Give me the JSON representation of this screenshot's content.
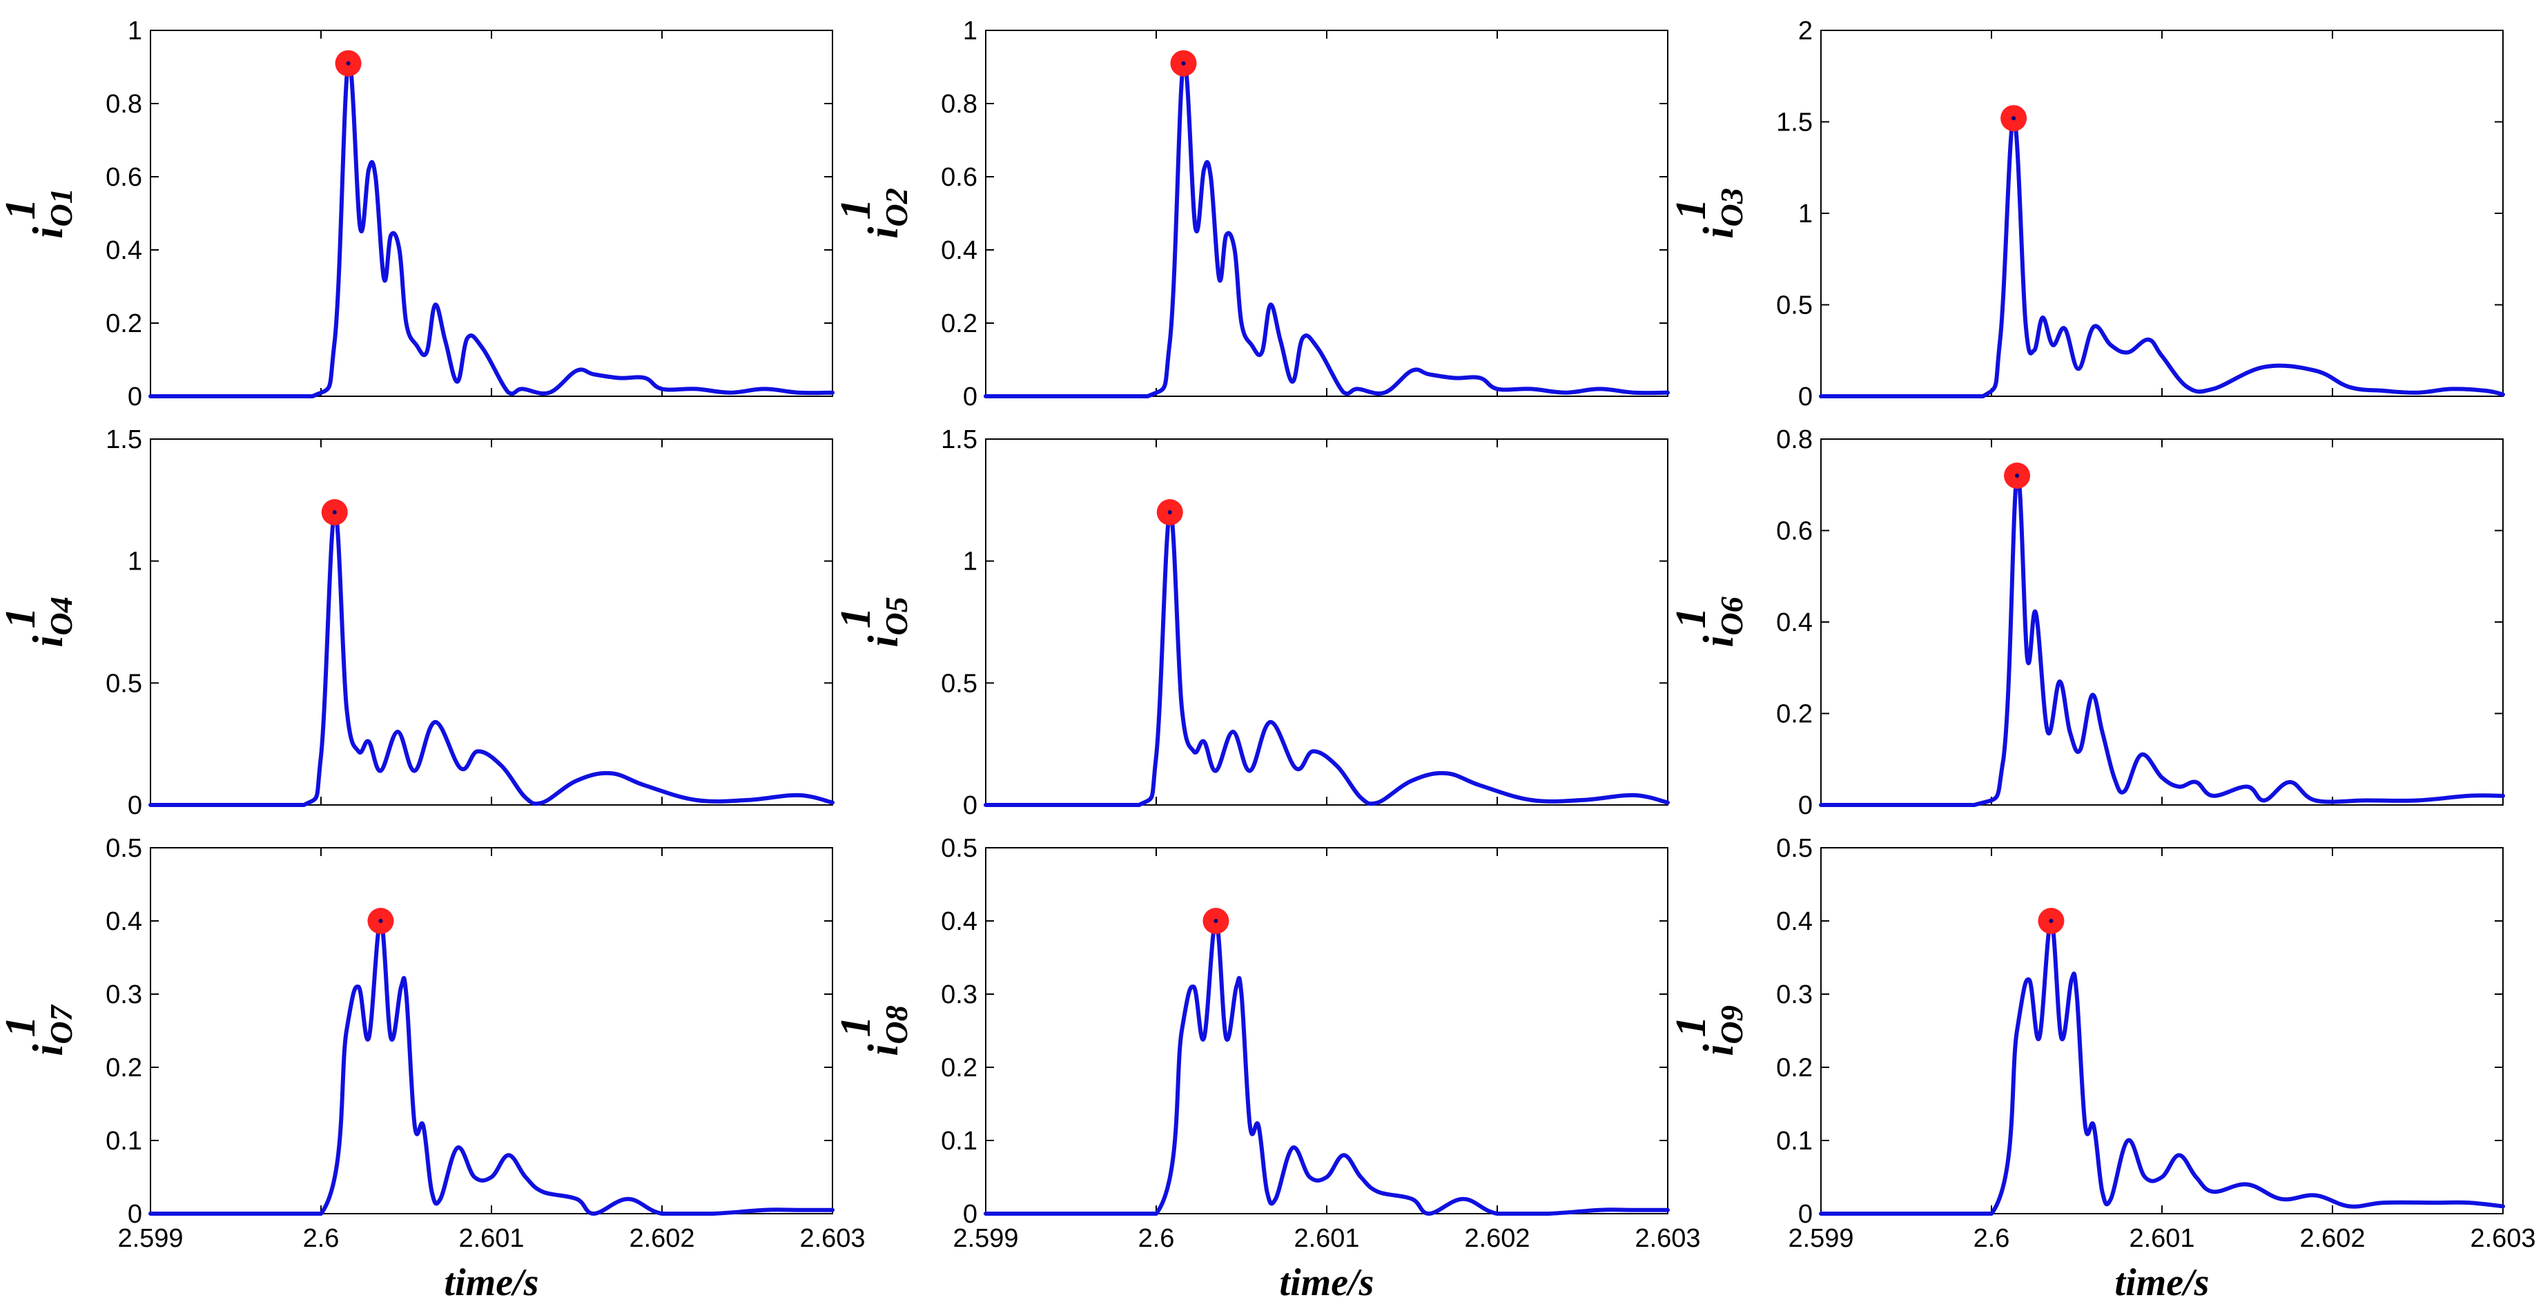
{
  "figure": {
    "xlabel": "time/s",
    "line_color": "#1010e0",
    "marker_color": "#ff2020",
    "marker_center_color": "#000080"
  },
  "chart_data": [
    {
      "type": "line",
      "ylabel": {
        "base": "i",
        "sup": "1",
        "sub": "O1"
      },
      "xlim": [
        2.599,
        2.603
      ],
      "ylim": [
        0,
        1
      ],
      "xticks": [
        "2.599",
        "2.6",
        "2.601",
        "2.602",
        "2.603"
      ],
      "yticks": [
        "0",
        "0.2",
        "0.4",
        "0.6",
        "0.8",
        "1"
      ],
      "x": [
        2.599,
        2.59995,
        2.60008,
        2.60016,
        2.60023,
        2.60028,
        2.60032,
        2.60037,
        2.60041,
        2.60046,
        2.6005,
        2.60056,
        2.60062,
        2.60067,
        2.60073,
        2.6008,
        2.60086,
        2.60095,
        2.6011,
        2.60118,
        2.60134,
        2.6015,
        2.6016,
        2.60175,
        2.6019,
        2.602,
        2.6022,
        2.6024,
        2.6026,
        2.6028,
        2.603
      ],
      "y": [
        0,
        0,
        0.15,
        0.91,
        0.46,
        0.62,
        0.6,
        0.32,
        0.44,
        0.4,
        0.2,
        0.14,
        0.12,
        0.25,
        0.15,
        0.04,
        0.16,
        0.13,
        0.01,
        0.02,
        0.01,
        0.07,
        0.06,
        0.05,
        0.05,
        0.02,
        0.02,
        0.01,
        0.02,
        0.01,
        0.01
      ],
      "peak": {
        "x": 2.60016,
        "y": 0.91
      }
    },
    {
      "type": "line",
      "ylabel": {
        "base": "i",
        "sup": "1",
        "sub": "O2"
      },
      "xlim": [
        2.599,
        2.603
      ],
      "ylim": [
        0,
        1
      ],
      "xticks": [
        "2.599",
        "2.6",
        "2.601",
        "2.602",
        "2.603"
      ],
      "yticks": [
        "0",
        "0.2",
        "0.4",
        "0.6",
        "0.8",
        "1"
      ],
      "x": [
        2.599,
        2.59995,
        2.60008,
        2.60016,
        2.60023,
        2.60028,
        2.60032,
        2.60037,
        2.60041,
        2.60046,
        2.6005,
        2.60056,
        2.60062,
        2.60067,
        2.60073,
        2.6008,
        2.60086,
        2.60095,
        2.6011,
        2.60118,
        2.60134,
        2.6015,
        2.6016,
        2.60175,
        2.6019,
        2.602,
        2.6022,
        2.6024,
        2.6026,
        2.6028,
        2.603
      ],
      "y": [
        0,
        0,
        0.15,
        0.91,
        0.46,
        0.62,
        0.6,
        0.32,
        0.44,
        0.4,
        0.2,
        0.14,
        0.12,
        0.25,
        0.15,
        0.04,
        0.16,
        0.13,
        0.01,
        0.02,
        0.01,
        0.07,
        0.06,
        0.05,
        0.05,
        0.02,
        0.02,
        0.01,
        0.02,
        0.01,
        0.01
      ],
      "peak": {
        "x": 2.60016,
        "y": 0.91
      }
    },
    {
      "type": "line",
      "ylabel": {
        "base": "i",
        "sup": "1",
        "sub": "O3"
      },
      "xlim": [
        2.599,
        2.603
      ],
      "ylim": [
        0,
        2
      ],
      "xticks": [
        "2.599",
        "2.6",
        "2.601",
        "2.602",
        "2.603"
      ],
      "yticks": [
        "0",
        "0.5",
        "1",
        "1.5",
        "2"
      ],
      "x": [
        2.599,
        2.59995,
        2.60005,
        2.60013,
        2.6002,
        2.60025,
        2.6003,
        2.60036,
        2.60043,
        2.60051,
        2.6006,
        2.6007,
        2.6008,
        2.60092,
        2.601,
        2.60115,
        2.6013,
        2.6016,
        2.6019,
        2.6021,
        2.6023,
        2.6025,
        2.6027,
        2.6029,
        2.603
      ],
      "y": [
        0,
        0,
        0.3,
        1.52,
        0.4,
        0.25,
        0.43,
        0.28,
        0.37,
        0.15,
        0.38,
        0.28,
        0.24,
        0.31,
        0.22,
        0.05,
        0.04,
        0.16,
        0.14,
        0.05,
        0.03,
        0.02,
        0.04,
        0.03,
        0.01
      ],
      "peak": {
        "x": 2.60013,
        "y": 1.52
      }
    },
    {
      "type": "line",
      "ylabel": {
        "base": "i",
        "sup": "1",
        "sub": "O4"
      },
      "xlim": [
        2.599,
        2.603
      ],
      "ylim": [
        0,
        1.5
      ],
      "xticks": [
        "2.599",
        "2.6",
        "2.601",
        "2.602",
        "2.603"
      ],
      "yticks": [
        "0",
        "0.5",
        "1",
        "1.5"
      ],
      "x": [
        2.599,
        2.5999,
        2.6,
        2.60008,
        2.60015,
        2.60022,
        2.60028,
        2.60035,
        2.60045,
        2.60055,
        2.60067,
        2.60082,
        2.60092,
        2.60106,
        2.6012,
        2.6013,
        2.6015,
        2.6017,
        2.6019,
        2.6022,
        2.6025,
        2.6028,
        2.603
      ],
      "y": [
        0,
        0,
        0.2,
        1.2,
        0.4,
        0.22,
        0.26,
        0.14,
        0.3,
        0.14,
        0.34,
        0.15,
        0.22,
        0.16,
        0.03,
        0.01,
        0.1,
        0.13,
        0.08,
        0.02,
        0.02,
        0.04,
        0.01
      ],
      "peak": {
        "x": 2.60008,
        "y": 1.2
      }
    },
    {
      "type": "line",
      "ylabel": {
        "base": "i",
        "sup": "1",
        "sub": "O5"
      },
      "xlim": [
        2.599,
        2.603
      ],
      "ylim": [
        0,
        1.5
      ],
      "xticks": [
        "2.599",
        "2.6",
        "2.601",
        "2.602",
        "2.603"
      ],
      "yticks": [
        "0",
        "0.5",
        "1",
        "1.5"
      ],
      "x": [
        2.599,
        2.5999,
        2.6,
        2.60008,
        2.60015,
        2.60022,
        2.60028,
        2.60035,
        2.60045,
        2.60055,
        2.60067,
        2.60082,
        2.60092,
        2.60106,
        2.6012,
        2.6013,
        2.6015,
        2.6017,
        2.6019,
        2.6022,
        2.6025,
        2.6028,
        2.603
      ],
      "y": [
        0,
        0,
        0.2,
        1.2,
        0.4,
        0.22,
        0.26,
        0.14,
        0.3,
        0.14,
        0.34,
        0.15,
        0.22,
        0.16,
        0.03,
        0.01,
        0.1,
        0.13,
        0.08,
        0.02,
        0.02,
        0.04,
        0.01
      ],
      "peak": {
        "x": 2.60008,
        "y": 1.2
      }
    },
    {
      "type": "line",
      "ylabel": {
        "base": "i",
        "sup": "1",
        "sub": "O6"
      },
      "xlim": [
        2.599,
        2.603
      ],
      "ylim": [
        0,
        0.8
      ],
      "xticks": [
        "2.599",
        "2.6",
        "2.601",
        "2.602",
        "2.603"
      ],
      "yticks": [
        "0",
        "0.2",
        "0.4",
        "0.6",
        "0.8"
      ],
      "x": [
        2.599,
        2.5999,
        2.60007,
        2.60015,
        2.60021,
        2.60026,
        2.60033,
        2.6004,
        2.60046,
        2.60052,
        2.60059,
        2.60065,
        2.60072,
        2.60078,
        2.60088,
        2.601,
        2.6011,
        2.6012,
        2.6013,
        2.6015,
        2.6016,
        2.60175,
        2.6019,
        2.6022,
        2.6025,
        2.6028,
        2.603
      ],
      "y": [
        0,
        0,
        0.1,
        0.72,
        0.32,
        0.42,
        0.16,
        0.27,
        0.16,
        0.12,
        0.24,
        0.16,
        0.06,
        0.03,
        0.11,
        0.06,
        0.04,
        0.05,
        0.02,
        0.04,
        0.01,
        0.05,
        0.01,
        0.01,
        0.01,
        0.02,
        0.02
      ],
      "peak": {
        "x": 2.60015,
        "y": 0.72
      }
    },
    {
      "type": "line",
      "ylabel": {
        "base": "i",
        "sup": "1",
        "sub": "O7"
      },
      "xlim": [
        2.599,
        2.603
      ],
      "ylim": [
        0,
        0.5
      ],
      "xticks": [
        "2.599",
        "2.6",
        "2.601",
        "2.602",
        "2.603"
      ],
      "yticks": [
        "0",
        "0.1",
        "0.2",
        "0.3",
        "0.4",
        "0.5"
      ],
      "x": [
        2.599,
        2.6,
        2.60015,
        2.60022,
        2.60028,
        2.60035,
        2.60041,
        2.60047,
        2.6005,
        2.60055,
        2.6006,
        2.60065,
        2.6007,
        2.6008,
        2.6009,
        2.601,
        2.6011,
        2.6012,
        2.6013,
        2.6015,
        2.6016,
        2.6018,
        2.602,
        2.6023,
        2.6026,
        2.6028,
        2.603
      ],
      "y": [
        0,
        0,
        0.25,
        0.31,
        0.24,
        0.4,
        0.24,
        0.31,
        0.3,
        0.12,
        0.12,
        0.03,
        0.02,
        0.09,
        0.05,
        0.05,
        0.08,
        0.05,
        0.03,
        0.02,
        0,
        0.02,
        0,
        0,
        0.005,
        0.005,
        0.005
      ],
      "peak": {
        "x": 2.60035,
        "y": 0.4
      }
    },
    {
      "type": "line",
      "ylabel": {
        "base": "i",
        "sup": "1",
        "sub": "O8"
      },
      "xlim": [
        2.599,
        2.603
      ],
      "ylim": [
        0,
        0.5
      ],
      "xticks": [
        "2.599",
        "2.6",
        "2.601",
        "2.602",
        "2.603"
      ],
      "yticks": [
        "0",
        "0.1",
        "0.2",
        "0.3",
        "0.4",
        "0.5"
      ],
      "x": [
        2.599,
        2.6,
        2.60015,
        2.60022,
        2.60028,
        2.60035,
        2.60041,
        2.60047,
        2.6005,
        2.60055,
        2.6006,
        2.60065,
        2.6007,
        2.6008,
        2.6009,
        2.601,
        2.6011,
        2.6012,
        2.6013,
        2.6015,
        2.6016,
        2.6018,
        2.602,
        2.6023,
        2.6026,
        2.6028,
        2.603
      ],
      "y": [
        0,
        0,
        0.25,
        0.31,
        0.24,
        0.4,
        0.24,
        0.31,
        0.3,
        0.12,
        0.12,
        0.03,
        0.02,
        0.09,
        0.05,
        0.05,
        0.08,
        0.05,
        0.03,
        0.02,
        0,
        0.02,
        0,
        0,
        0.005,
        0.005,
        0.005
      ],
      "peak": {
        "x": 2.60035,
        "y": 0.4
      }
    },
    {
      "type": "line",
      "ylabel": {
        "base": "i",
        "sup": "1",
        "sub": "O9"
      },
      "xlim": [
        2.599,
        2.603
      ],
      "ylim": [
        0,
        0.5
      ],
      "xticks": [
        "2.599",
        "2.6",
        "2.601",
        "2.602",
        "2.603"
      ],
      "yticks": [
        "0",
        "0.1",
        "0.2",
        "0.3",
        "0.4",
        "0.5"
      ],
      "x": [
        2.599,
        2.6,
        2.60015,
        2.60022,
        2.60028,
        2.60035,
        2.60041,
        2.60047,
        2.6005,
        2.60055,
        2.6006,
        2.60065,
        2.6007,
        2.6008,
        2.6009,
        2.601,
        2.6011,
        2.6012,
        2.6013,
        2.6015,
        2.6017,
        2.6019,
        2.6021,
        2.6023,
        2.6026,
        2.6028,
        2.603
      ],
      "y": [
        0,
        0,
        0.25,
        0.32,
        0.24,
        0.4,
        0.24,
        0.32,
        0.3,
        0.12,
        0.12,
        0.03,
        0.02,
        0.1,
        0.05,
        0.05,
        0.08,
        0.05,
        0.03,
        0.04,
        0.02,
        0.025,
        0.01,
        0.015,
        0.015,
        0.015,
        0.01
      ],
      "peak": {
        "x": 2.60035,
        "y": 0.4
      }
    }
  ]
}
